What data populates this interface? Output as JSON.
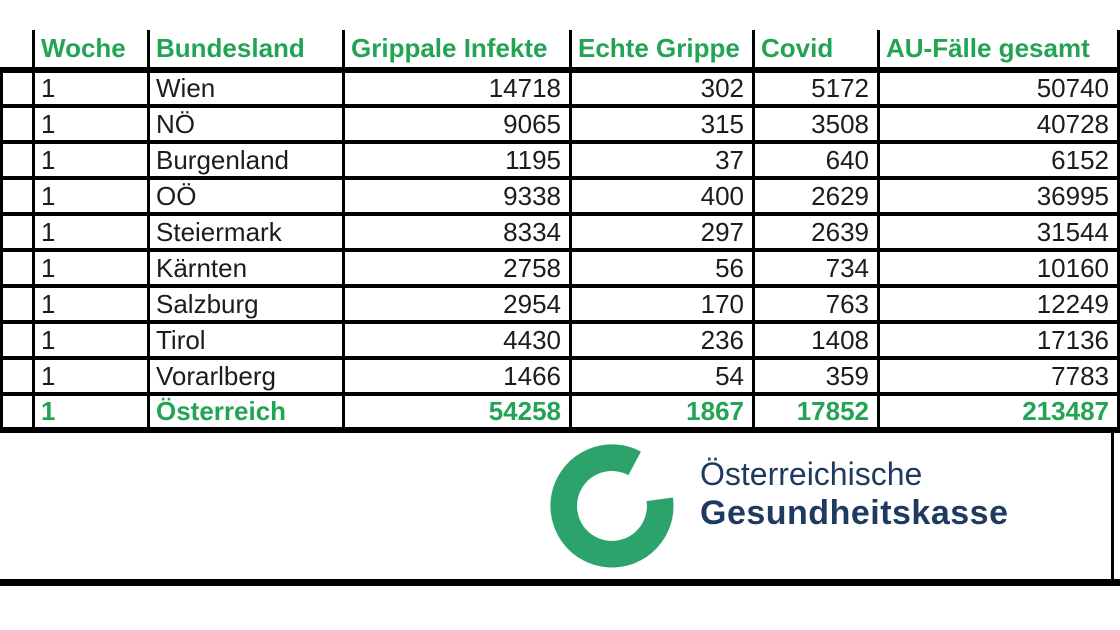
{
  "table": {
    "headers": [
      "Woche",
      "Bundesland",
      "Grippale Infekte",
      "Echte Grippe",
      "Covid",
      "AU-Fälle gesamt"
    ],
    "rows": [
      {
        "woche": "1",
        "bundesland": "Wien",
        "grippale": "14718",
        "echte": "302",
        "covid": "5172",
        "au": "50740",
        "is_total": false
      },
      {
        "woche": "1",
        "bundesland": "NÖ",
        "grippale": "9065",
        "echte": "315",
        "covid": "3508",
        "au": "40728",
        "is_total": false
      },
      {
        "woche": "1",
        "bundesland": "Burgenland",
        "grippale": "1195",
        "echte": "37",
        "covid": "640",
        "au": "6152",
        "is_total": false
      },
      {
        "woche": "1",
        "bundesland": "OÖ",
        "grippale": "9338",
        "echte": "400",
        "covid": "2629",
        "au": "36995",
        "is_total": false
      },
      {
        "woche": "1",
        "bundesland": "Steiermark",
        "grippale": "8334",
        "echte": "297",
        "covid": "2639",
        "au": "31544",
        "is_total": false
      },
      {
        "woche": "1",
        "bundesland": "Kärnten",
        "grippale": "2758",
        "echte": "56",
        "covid": "734",
        "au": "10160",
        "is_total": false
      },
      {
        "woche": "1",
        "bundesland": "Salzburg",
        "grippale": "2954",
        "echte": "170",
        "covid": "763",
        "au": "12249",
        "is_total": false
      },
      {
        "woche": "1",
        "bundesland": "Tirol",
        "grippale": "4430",
        "echte": "236",
        "covid": "1408",
        "au": "17136",
        "is_total": false
      },
      {
        "woche": "1",
        "bundesland": "Vorarlberg",
        "grippale": "1466",
        "echte": "54",
        "covid": "359",
        "au": "7783",
        "is_total": false
      },
      {
        "woche": "1",
        "bundesland": "Österreich",
        "grippale": "54258",
        "echte": "1867",
        "covid": "17852",
        "au": "213487",
        "is_total": true
      }
    ]
  },
  "logo": {
    "line1": "Österreichische",
    "line2": "Gesundheitskasse"
  },
  "colors": {
    "table_green": "#23a455",
    "logo_green": "#2ba36b",
    "navy": "#1e3a5e",
    "text": "#1c1c1c",
    "border": "#000000"
  }
}
